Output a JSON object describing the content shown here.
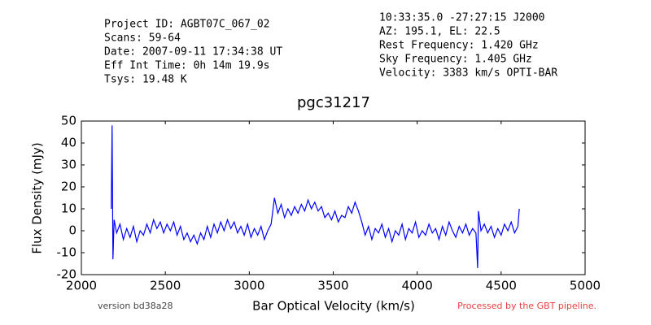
{
  "chart_data": {
    "type": "line",
    "title": "pgc31217",
    "info_left": [
      "Project ID: AGBT07C_067_02",
      "Scans: 59-64",
      "Date: 2007-09-11 17:34:38 UT",
      "Eff Int Time: 0h 14m 19.9s",
      "Tsys: 19.48 K"
    ],
    "info_right": [
      "10:33:35.0 -27:27:15 J2000",
      "AZ: 195.1, EL: 22.5",
      "Rest Frequency:   1.420 GHz",
      "Sky Frequency:    1.405 GHz",
      "Velocity: 3383 km/s OPTI-BAR"
    ],
    "footer_left": "version bd38a28",
    "footer_right": "Processed by the GBT pipeline.",
    "x_label": "Bar Optical Velocity (km/s)",
    "y_label": "Flux Density (mJy)",
    "xlim": [
      2000,
      5000
    ],
    "xticks": [
      2000,
      2500,
      3000,
      3500,
      4000,
      4500,
      5000
    ],
    "ylim": [
      -20,
      50
    ],
    "yticks": [
      -20,
      -10,
      0,
      10,
      20,
      30,
      40,
      50
    ],
    "grid": false,
    "series": [
      {
        "color": "#0000ff",
        "x": [
          2178,
          2183,
          2188,
          2195,
          2210,
          2230,
          2250,
          2270,
          2290,
          2310,
          2330,
          2350,
          2370,
          2390,
          2410,
          2430,
          2450,
          2470,
          2490,
          2510,
          2530,
          2550,
          2570,
          2590,
          2610,
          2630,
          2650,
          2670,
          2690,
          2710,
          2730,
          2750,
          2770,
          2790,
          2810,
          2830,
          2850,
          2870,
          2890,
          2910,
          2930,
          2950,
          2970,
          2990,
          3010,
          3030,
          3050,
          3070,
          3090,
          3110,
          3130,
          3150,
          3170,
          3190,
          3210,
          3230,
          3250,
          3270,
          3290,
          3310,
          3330,
          3350,
          3370,
          3390,
          3410,
          3430,
          3450,
          3470,
          3490,
          3510,
          3530,
          3550,
          3570,
          3590,
          3610,
          3630,
          3650,
          3670,
          3690,
          3710,
          3730,
          3750,
          3770,
          3790,
          3810,
          3830,
          3850,
          3870,
          3890,
          3910,
          3930,
          3950,
          3970,
          3990,
          4010,
          4030,
          4050,
          4070,
          4090,
          4110,
          4130,
          4150,
          4170,
          4190,
          4210,
          4230,
          4250,
          4270,
          4290,
          4310,
          4330,
          4350,
          4360,
          4365,
          4380,
          4400,
          4420,
          4440,
          4460,
          4480,
          4500,
          4520,
          4540,
          4560,
          4580,
          4600,
          4608
        ],
        "values": [
          10,
          48,
          -13,
          5,
          -1,
          3,
          -4,
          1,
          -3,
          2,
          -5,
          0,
          -2,
          3,
          -1,
          5,
          1,
          4,
          -1,
          3,
          0,
          4,
          -2,
          2,
          -4,
          -1,
          -5,
          -2,
          -6,
          -1,
          -4,
          2,
          -3,
          3,
          -1,
          4,
          0,
          5,
          1,
          4,
          -1,
          2,
          -2,
          3,
          -3,
          1,
          -2,
          2,
          -4,
          0,
          3,
          15,
          8,
          12,
          6,
          10,
          7,
          11,
          8,
          12,
          9,
          14,
          10,
          13,
          9,
          11,
          6,
          8,
          5,
          9,
          4,
          7,
          6,
          11,
          8,
          13,
          9,
          4,
          -2,
          2,
          -4,
          1,
          -1,
          3,
          -3,
          1,
          -5,
          0,
          -2,
          3,
          -4,
          1,
          -1,
          4,
          -3,
          0,
          -2,
          3,
          -1,
          1,
          -4,
          2,
          -2,
          4,
          0,
          -3,
          2,
          -1,
          3,
          -2,
          1,
          -1,
          -17,
          9,
          0,
          3,
          -1,
          2,
          -3,
          1,
          -2,
          3,
          0,
          4,
          -1,
          2,
          10
        ]
      }
    ]
  }
}
